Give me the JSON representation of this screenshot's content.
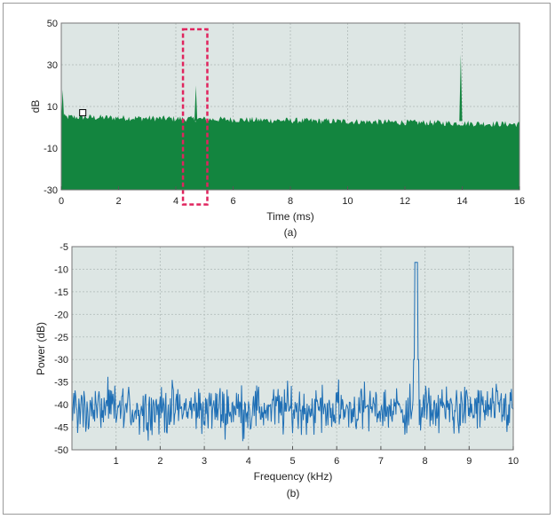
{
  "chart_data": [
    {
      "id": "a",
      "type": "area",
      "caption": "(a)",
      "xlabel": "Time (ms)",
      "ylabel": "dB",
      "xlim": [
        0,
        16
      ],
      "ylim": [
        -30,
        50
      ],
      "xticks": [
        0,
        2,
        4,
        6,
        8,
        10,
        12,
        14,
        16
      ],
      "yticks": [
        50,
        30,
        10,
        -10,
        -30
      ],
      "grid": true,
      "background": "#dde6e4",
      "fill_color": "#13853f",
      "noise_floor_db": 2,
      "noise_top_start_db": 5,
      "noise_top_end_db": 1.5,
      "initial_spike": {
        "x": 0.05,
        "y": 18
      },
      "spikes": [
        {
          "x": 4.7,
          "y": 20
        },
        {
          "x": 13.95,
          "y": 35
        }
      ],
      "highlight_box": {
        "x0": 4.25,
        "x1": 5.1,
        "y0": -37,
        "y1": 47,
        "color": "#e0245e"
      },
      "marker": {
        "x": 0.75,
        "y": 7
      }
    },
    {
      "id": "b",
      "type": "line",
      "caption": "(b)",
      "xlabel": "Frequency (kHz)",
      "ylabel": "Power (dB)",
      "xlim": [
        0,
        10
      ],
      "ylim": [
        -50,
        -5
      ],
      "xticks": [
        1,
        2,
        3,
        4,
        5,
        6,
        7,
        8,
        9,
        10
      ],
      "yticks": [
        -5,
        -10,
        -15,
        -20,
        -25,
        -30,
        -35,
        -40,
        -45,
        -50
      ],
      "grid": true,
      "background": "#dde6e4",
      "line_color": "#1f6fb5",
      "noise_mean_db": -41,
      "noise_range_db": [
        -49,
        -32
      ],
      "peak": {
        "x": 7.8,
        "y": -8.5
      }
    }
  ]
}
